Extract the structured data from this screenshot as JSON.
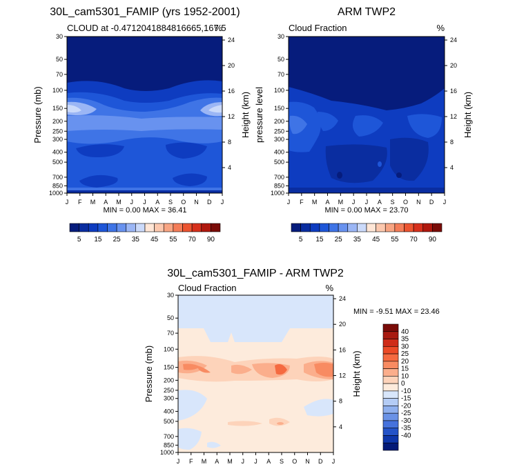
{
  "chart_data": [
    {
      "type": "heatmap",
      "title": "30L_cam5301_FAMIP (yrs 1952-2001)",
      "subtitle_left": "CLOUD at -0.4712041884816665,167.5",
      "units": "%",
      "ylabel": "Pressure (mb)",
      "ylabel_right": "Height (km)",
      "x_ticks": [
        "J",
        "F",
        "M",
        "A",
        "M",
        "J",
        "J",
        "A",
        "S",
        "O",
        "N",
        "D",
        "J"
      ],
      "y_ticks": [
        "30",
        "50",
        "70",
        "100",
        "150",
        "200",
        "250",
        "300",
        "400",
        "500",
        "700",
        "850",
        "1000"
      ],
      "y_right_ticks": [
        "24",
        "20",
        "16",
        "12",
        "8",
        "4"
      ],
      "stats": "MIN =   0.00 MAX =  36.41",
      "colorbar": {
        "orientation": "horizontal",
        "labels": [
          "5",
          "15",
          "25",
          "35",
          "45",
          "55",
          "70",
          "90"
        ],
        "colors": [
          "#061c7c",
          "#0a2da0",
          "#0e3cc0",
          "#1e56d8",
          "#3f74e6",
          "#6892ef",
          "#9bb6f5",
          "#cbdafa",
          "#ffe6d6",
          "#fcc8ae",
          "#f8a583",
          "#f47d58",
          "#ec5430",
          "#d7301c",
          "#b0180e",
          "#7a0c08"
        ]
      }
    },
    {
      "type": "heatmap",
      "title": "ARM TWP2",
      "subtitle_left": "Cloud Fraction",
      "units": "%",
      "ylabel": "pressure level",
      "ylabel_right": "Height (km)",
      "x_ticks": [
        "J",
        "F",
        "M",
        "A",
        "M",
        "J",
        "J",
        "A",
        "S",
        "O",
        "N",
        "D",
        "J"
      ],
      "y_ticks": [
        "30",
        "50",
        "70",
        "100",
        "150",
        "200",
        "250",
        "300",
        "400",
        "500",
        "700",
        "850",
        "1000"
      ],
      "y_right_ticks": [
        "24",
        "20",
        "16",
        "12",
        "8",
        "4"
      ],
      "stats": "MIN =   0.00 MAX =  23.70",
      "colorbar": {
        "orientation": "horizontal",
        "labels": [
          "5",
          "15",
          "25",
          "35",
          "45",
          "55",
          "70",
          "90"
        ],
        "colors": [
          "#061c7c",
          "#0a2da0",
          "#0e3cc0",
          "#1e56d8",
          "#3f74e6",
          "#6892ef",
          "#9bb6f5",
          "#cbdafa",
          "#ffe6d6",
          "#fcc8ae",
          "#f8a583",
          "#f47d58",
          "#ec5430",
          "#d7301c",
          "#b0180e",
          "#7a0c08"
        ]
      }
    },
    {
      "type": "heatmap",
      "title": "30L_cam5301_FAMIP - ARM TWP2",
      "subtitle_left": "Cloud Fraction",
      "units": "%",
      "ylabel": "Pressure (mb)",
      "ylabel_right": "Height (km)",
      "x_ticks": [
        "J",
        "F",
        "M",
        "A",
        "M",
        "J",
        "J",
        "A",
        "S",
        "O",
        "N",
        "D",
        "J"
      ],
      "y_ticks": [
        "30",
        "50",
        "70",
        "100",
        "150",
        "200",
        "250",
        "300",
        "400",
        "500",
        "700",
        "850",
        "1000"
      ],
      "y_right_ticks": [
        "24",
        "20",
        "16",
        "12",
        "8",
        "4"
      ],
      "stats": "MIN =  -9.51 MAX =  23.46",
      "colorbar": {
        "orientation": "vertical",
        "labels": [
          "40",
          "35",
          "30",
          "25",
          "20",
          "15",
          "10",
          "0",
          "-10",
          "-15",
          "-20",
          "-25",
          "-30",
          "-35",
          "-40"
        ],
        "colors": [
          "#7a0c08",
          "#a81a10",
          "#cf2c18",
          "#ec4a26",
          "#f56a40",
          "#f88b62",
          "#fbae8c",
          "#fdd3ba",
          "#fdebdc",
          "#d8e6fb",
          "#b4ccf5",
          "#8fb0ee",
          "#6a92e6",
          "#4672dc",
          "#2453c8",
          "#0e36aa",
          "#041a78"
        ]
      }
    }
  ]
}
